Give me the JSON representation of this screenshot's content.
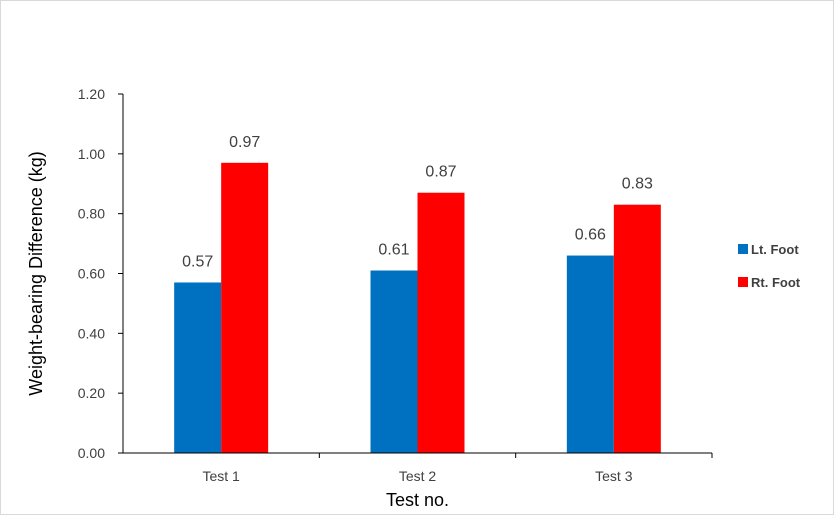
{
  "chart_data": {
    "type": "bar",
    "categories": [
      "Test 1",
      "Test 2",
      "Test 3"
    ],
    "series": [
      {
        "name": "Lt. Foot",
        "values": [
          0.57,
          0.61,
          0.66
        ],
        "labels": [
          "0.57",
          "0.61",
          "0.66"
        ],
        "color": "#0070C0"
      },
      {
        "name": "Rt. Foot",
        "values": [
          0.97,
          0.87,
          0.83
        ],
        "labels": [
          "0.97",
          "0.87",
          "0.83"
        ],
        "color": "#FF0000"
      }
    ],
    "title": "",
    "xlabel": "Test no.",
    "ylabel": "Weight-bearing Difference (kg)",
    "ylim": [
      0,
      1.2
    ],
    "yticks": [
      "0.00",
      "0.20",
      "0.40",
      "0.60",
      "0.80",
      "1.00",
      "1.20"
    ],
    "grid": false,
    "legend_position": "right"
  }
}
